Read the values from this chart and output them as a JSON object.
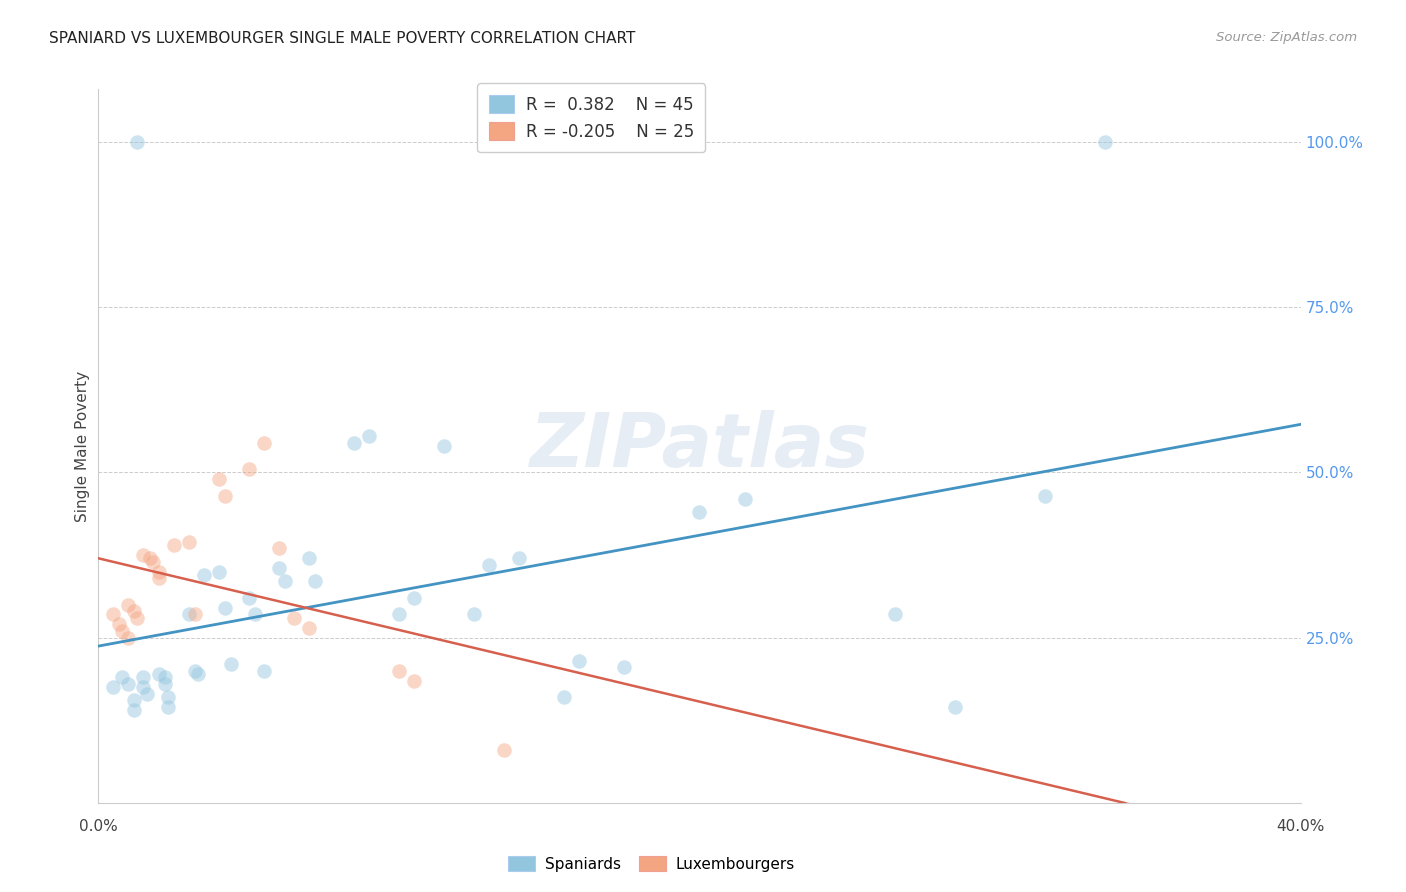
{
  "title": "SPANIARD VS LUXEMBOURGER SINGLE MALE POVERTY CORRELATION CHART",
  "source": "Source: ZipAtlas.com",
  "ylabel": "Single Male Poverty",
  "ytick_labels": [
    "100.0%",
    "75.0%",
    "50.0%",
    "25.0%"
  ],
  "ytick_positions": [
    1.0,
    0.75,
    0.5,
    0.25
  ],
  "x_min": 0.0,
  "x_max": 0.4,
  "y_min": 0.0,
  "y_max": 1.08,
  "blue_r": "0.382",
  "blue_n": "45",
  "pink_r": "-0.205",
  "pink_n": "25",
  "blue_scatter_color": "#92c5de",
  "pink_scatter_color": "#f4a582",
  "blue_line_color": "#4393c3",
  "pink_solid_color": "#d6604d",
  "pink_dash_color": "#d6604d",
  "grid_color": "#cccccc",
  "spaniards_x": [
    0.005,
    0.008,
    0.01,
    0.012,
    0.012,
    0.013,
    0.015,
    0.015,
    0.016,
    0.02,
    0.022,
    0.022,
    0.023,
    0.023,
    0.03,
    0.032,
    0.033,
    0.035,
    0.04,
    0.042,
    0.044,
    0.05,
    0.052,
    0.055,
    0.06,
    0.062,
    0.07,
    0.072,
    0.085,
    0.09,
    0.1,
    0.105,
    0.115,
    0.125,
    0.13,
    0.14,
    0.155,
    0.16,
    0.175,
    0.2,
    0.215,
    0.265,
    0.285,
    0.315,
    0.335
  ],
  "spaniards_y": [
    0.175,
    0.19,
    0.18,
    0.155,
    0.14,
    1.0,
    0.19,
    0.175,
    0.165,
    0.195,
    0.19,
    0.18,
    0.16,
    0.145,
    0.285,
    0.2,
    0.195,
    0.345,
    0.35,
    0.295,
    0.21,
    0.31,
    0.285,
    0.2,
    0.355,
    0.335,
    0.37,
    0.335,
    0.545,
    0.555,
    0.285,
    0.31,
    0.54,
    0.285,
    0.36,
    0.37,
    0.16,
    0.215,
    0.205,
    0.44,
    0.46,
    0.285,
    0.145,
    0.465,
    1.0
  ],
  "luxembourgers_x": [
    0.005,
    0.007,
    0.008,
    0.01,
    0.01,
    0.012,
    0.013,
    0.015,
    0.017,
    0.018,
    0.02,
    0.02,
    0.025,
    0.03,
    0.032,
    0.04,
    0.042,
    0.05,
    0.055,
    0.06,
    0.065,
    0.07,
    0.1,
    0.105,
    0.135
  ],
  "luxembourgers_y": [
    0.285,
    0.27,
    0.26,
    0.25,
    0.3,
    0.29,
    0.28,
    0.375,
    0.37,
    0.365,
    0.35,
    0.34,
    0.39,
    0.395,
    0.285,
    0.49,
    0.465,
    0.505,
    0.545,
    0.385,
    0.28,
    0.265,
    0.2,
    0.185,
    0.08
  ]
}
